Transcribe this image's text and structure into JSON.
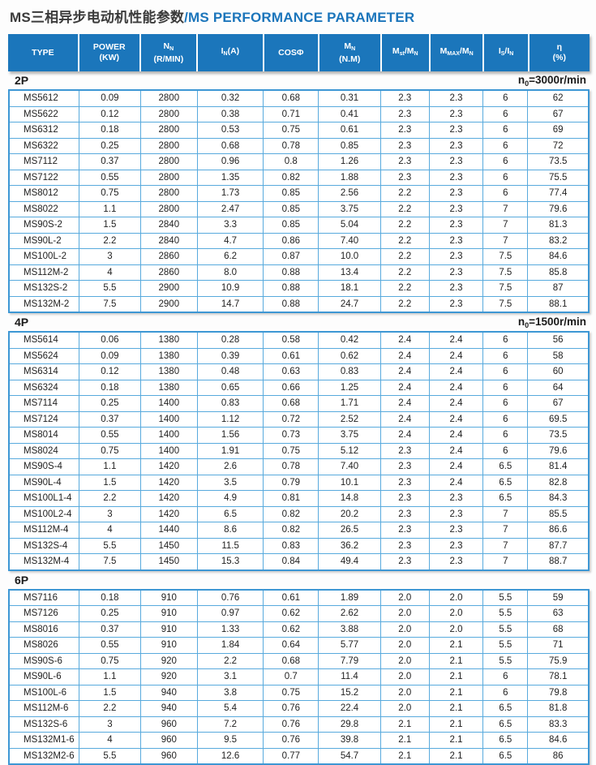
{
  "page": {
    "title_cn": "MS三相异步电动机性能参数",
    "title_sep": "/",
    "title_en": "MS PERFORMANCE PARAMETER"
  },
  "colors": {
    "header_bg": "#1b76bb",
    "grid_border": "#58aadd",
    "outer_border": "#3d97d4",
    "title_en": "#1b75bb"
  },
  "table": {
    "columns": [
      {
        "label": "TYPE"
      },
      {
        "line1": "POWER",
        "line2": "(KW)"
      },
      {
        "main": "N",
        "sub": "N",
        "line2": "(R/MIN)"
      },
      {
        "main": "I",
        "sub": "N",
        "suffix": "(A)"
      },
      {
        "label": "COSΦ"
      },
      {
        "main": "M",
        "sub": "N",
        "line2": "(N.M)"
      },
      {
        "m1": "M",
        "s1": "st",
        "sep": "/",
        "m2": "M",
        "s2": "N"
      },
      {
        "m1": "M",
        "s1": "MAX",
        "sep": "/",
        "m2": "M",
        "s2": "N"
      },
      {
        "m1": "I",
        "s1": "S",
        "sep": "/",
        "m2": "I",
        "s2": "N"
      },
      {
        "line1": "η",
        "line2": "(%)"
      }
    ],
    "sections": [
      {
        "label": "2P",
        "note_main": "n",
        "note_sub": "0",
        "note_rest": "=3000r/min",
        "rows": [
          [
            "MS5612",
            "0.09",
            "2800",
            "0.32",
            "0.68",
            "0.31",
            "2.3",
            "2.3",
            "6",
            "62"
          ],
          [
            "MS5622",
            "0.12",
            "2800",
            "0.38",
            "0.71",
            "0.41",
            "2.3",
            "2.3",
            "6",
            "67"
          ],
          [
            "MS6312",
            "0.18",
            "2800",
            "0.53",
            "0.75",
            "0.61",
            "2.3",
            "2.3",
            "6",
            "69"
          ],
          [
            "MS6322",
            "0.25",
            "2800",
            "0.68",
            "0.78",
            "0.85",
            "2.3",
            "2.3",
            "6",
            "72"
          ],
          [
            "MS7112",
            "0.37",
            "2800",
            "0.96",
            "0.8",
            "1.26",
            "2.3",
            "2.3",
            "6",
            "73.5"
          ],
          [
            "MS7122",
            "0.55",
            "2800",
            "1.35",
            "0.82",
            "1.88",
            "2.3",
            "2.3",
            "6",
            "75.5"
          ],
          [
            "MS8012",
            "0.75",
            "2800",
            "1.73",
            "0.85",
            "2.56",
            "2.2",
            "2.3",
            "6",
            "77.4"
          ],
          [
            "MS8022",
            "1.1",
            "2800",
            "2.47",
            "0.85",
            "3.75",
            "2.2",
            "2.3",
            "7",
            "79.6"
          ],
          [
            "MS90S-2",
            "1.5",
            "2840",
            "3.3",
            "0.85",
            "5.04",
            "2.2",
            "2.3",
            "7",
            "81.3"
          ],
          [
            "MS90L-2",
            "2.2",
            "2840",
            "4.7",
            "0.86",
            "7.40",
            "2.2",
            "2.3",
            "7",
            "83.2"
          ],
          [
            "MS100L-2",
            "3",
            "2860",
            "6.2",
            "0.87",
            "10.0",
            "2.2",
            "2.3",
            "7.5",
            "84.6"
          ],
          [
            "MS112M-2",
            "4",
            "2860",
            "8.0",
            "0.88",
            "13.4",
            "2.2",
            "2.3",
            "7.5",
            "85.8"
          ],
          [
            "MS132S-2",
            "5.5",
            "2900",
            "10.9",
            "0.88",
            "18.1",
            "2.2",
            "2.3",
            "7.5",
            "87"
          ],
          [
            "MS132M-2",
            "7.5",
            "2900",
            "14.7",
            "0.88",
            "24.7",
            "2.2",
            "2.3",
            "7.5",
            "88.1"
          ]
        ]
      },
      {
        "label": "4P",
        "note_main": "n",
        "note_sub": "0",
        "note_rest": "=1500r/min",
        "rows": [
          [
            "MS5614",
            "0.06",
            "1380",
            "0.28",
            "0.58",
            "0.42",
            "2.4",
            "2.4",
            "6",
            "56"
          ],
          [
            "MS5624",
            "0.09",
            "1380",
            "0.39",
            "0.61",
            "0.62",
            "2.4",
            "2.4",
            "6",
            "58"
          ],
          [
            "MS6314",
            "0.12",
            "1380",
            "0.48",
            "0.63",
            "0.83",
            "2.4",
            "2.4",
            "6",
            "60"
          ],
          [
            "MS6324",
            "0.18",
            "1380",
            "0.65",
            "0.66",
            "1.25",
            "2.4",
            "2.4",
            "6",
            "64"
          ],
          [
            "MS7114",
            "0.25",
            "1400",
            "0.83",
            "0.68",
            "1.71",
            "2.4",
            "2.4",
            "6",
            "67"
          ],
          [
            "MS7124",
            "0.37",
            "1400",
            "1.12",
            "0.72",
            "2.52",
            "2.4",
            "2.4",
            "6",
            "69.5"
          ],
          [
            "MS8014",
            "0.55",
            "1400",
            "1.56",
            "0.73",
            "3.75",
            "2.4",
            "2.4",
            "6",
            "73.5"
          ],
          [
            "MS8024",
            "0.75",
            "1400",
            "1.91",
            "0.75",
            "5.12",
            "2.3",
            "2.4",
            "6",
            "79.6"
          ],
          [
            "MS90S-4",
            "1.1",
            "1420",
            "2.6",
            "0.78",
            "7.40",
            "2.3",
            "2.4",
            "6.5",
            "81.4"
          ],
          [
            "MS90L-4",
            "1.5",
            "1420",
            "3.5",
            "0.79",
            "10.1",
            "2.3",
            "2.4",
            "6.5",
            "82.8"
          ],
          [
            "MS100L1-4",
            "2.2",
            "1420",
            "4.9",
            "0.81",
            "14.8",
            "2.3",
            "2.3",
            "6.5",
            "84.3"
          ],
          [
            "MS100L2-4",
            "3",
            "1420",
            "6.5",
            "0.82",
            "20.2",
            "2.3",
            "2.3",
            "7",
            "85.5"
          ],
          [
            "MS112M-4",
            "4",
            "1440",
            "8.6",
            "0.82",
            "26.5",
            "2.3",
            "2.3",
            "7",
            "86.6"
          ],
          [
            "MS132S-4",
            "5.5",
            "1450",
            "11.5",
            "0.83",
            "36.2",
            "2.3",
            "2.3",
            "7",
            "87.7"
          ],
          [
            "MS132M-4",
            "7.5",
            "1450",
            "15.3",
            "0.84",
            "49.4",
            "2.3",
            "2.3",
            "7",
            "88.7"
          ]
        ]
      },
      {
        "label": "6P",
        "note_main": "",
        "note_sub": "",
        "note_rest": "",
        "rows": [
          [
            "MS7116",
            "0.18",
            "910",
            "0.76",
            "0.61",
            "1.89",
            "2.0",
            "2.0",
            "5.5",
            "59"
          ],
          [
            "MS7126",
            "0.25",
            "910",
            "0.97",
            "0.62",
            "2.62",
            "2.0",
            "2.0",
            "5.5",
            "63"
          ],
          [
            "MS8016",
            "0.37",
            "910",
            "1.33",
            "0.62",
            "3.88",
            "2.0",
            "2.0",
            "5.5",
            "68"
          ],
          [
            "MS8026",
            "0.55",
            "910",
            "1.84",
            "0.64",
            "5.77",
            "2.0",
            "2.1",
            "5.5",
            "71"
          ],
          [
            "MS90S-6",
            "0.75",
            "920",
            "2.2",
            "0.68",
            "7.79",
            "2.0",
            "2.1",
            "5.5",
            "75.9"
          ],
          [
            "MS90L-6",
            "1.1",
            "920",
            "3.1",
            "0.7",
            "11.4",
            "2.0",
            "2.1",
            "6",
            "78.1"
          ],
          [
            "MS100L-6",
            "1.5",
            "940",
            "3.8",
            "0.75",
            "15.2",
            "2.0",
            "2.1",
            "6",
            "79.8"
          ],
          [
            "MS112M-6",
            "2.2",
            "940",
            "5.4",
            "0.76",
            "22.4",
            "2.0",
            "2.1",
            "6.5",
            "81.8"
          ],
          [
            "MS132S-6",
            "3",
            "960",
            "7.2",
            "0.76",
            "29.8",
            "2.1",
            "2.1",
            "6.5",
            "83.3"
          ],
          [
            "MS132M1-6",
            "4",
            "960",
            "9.5",
            "0.76",
            "39.8",
            "2.1",
            "2.1",
            "6.5",
            "84.6"
          ],
          [
            "MS132M2-6",
            "5.5",
            "960",
            "12.6",
            "0.77",
            "54.7",
            "2.1",
            "2.1",
            "6.5",
            "86"
          ]
        ]
      }
    ]
  }
}
